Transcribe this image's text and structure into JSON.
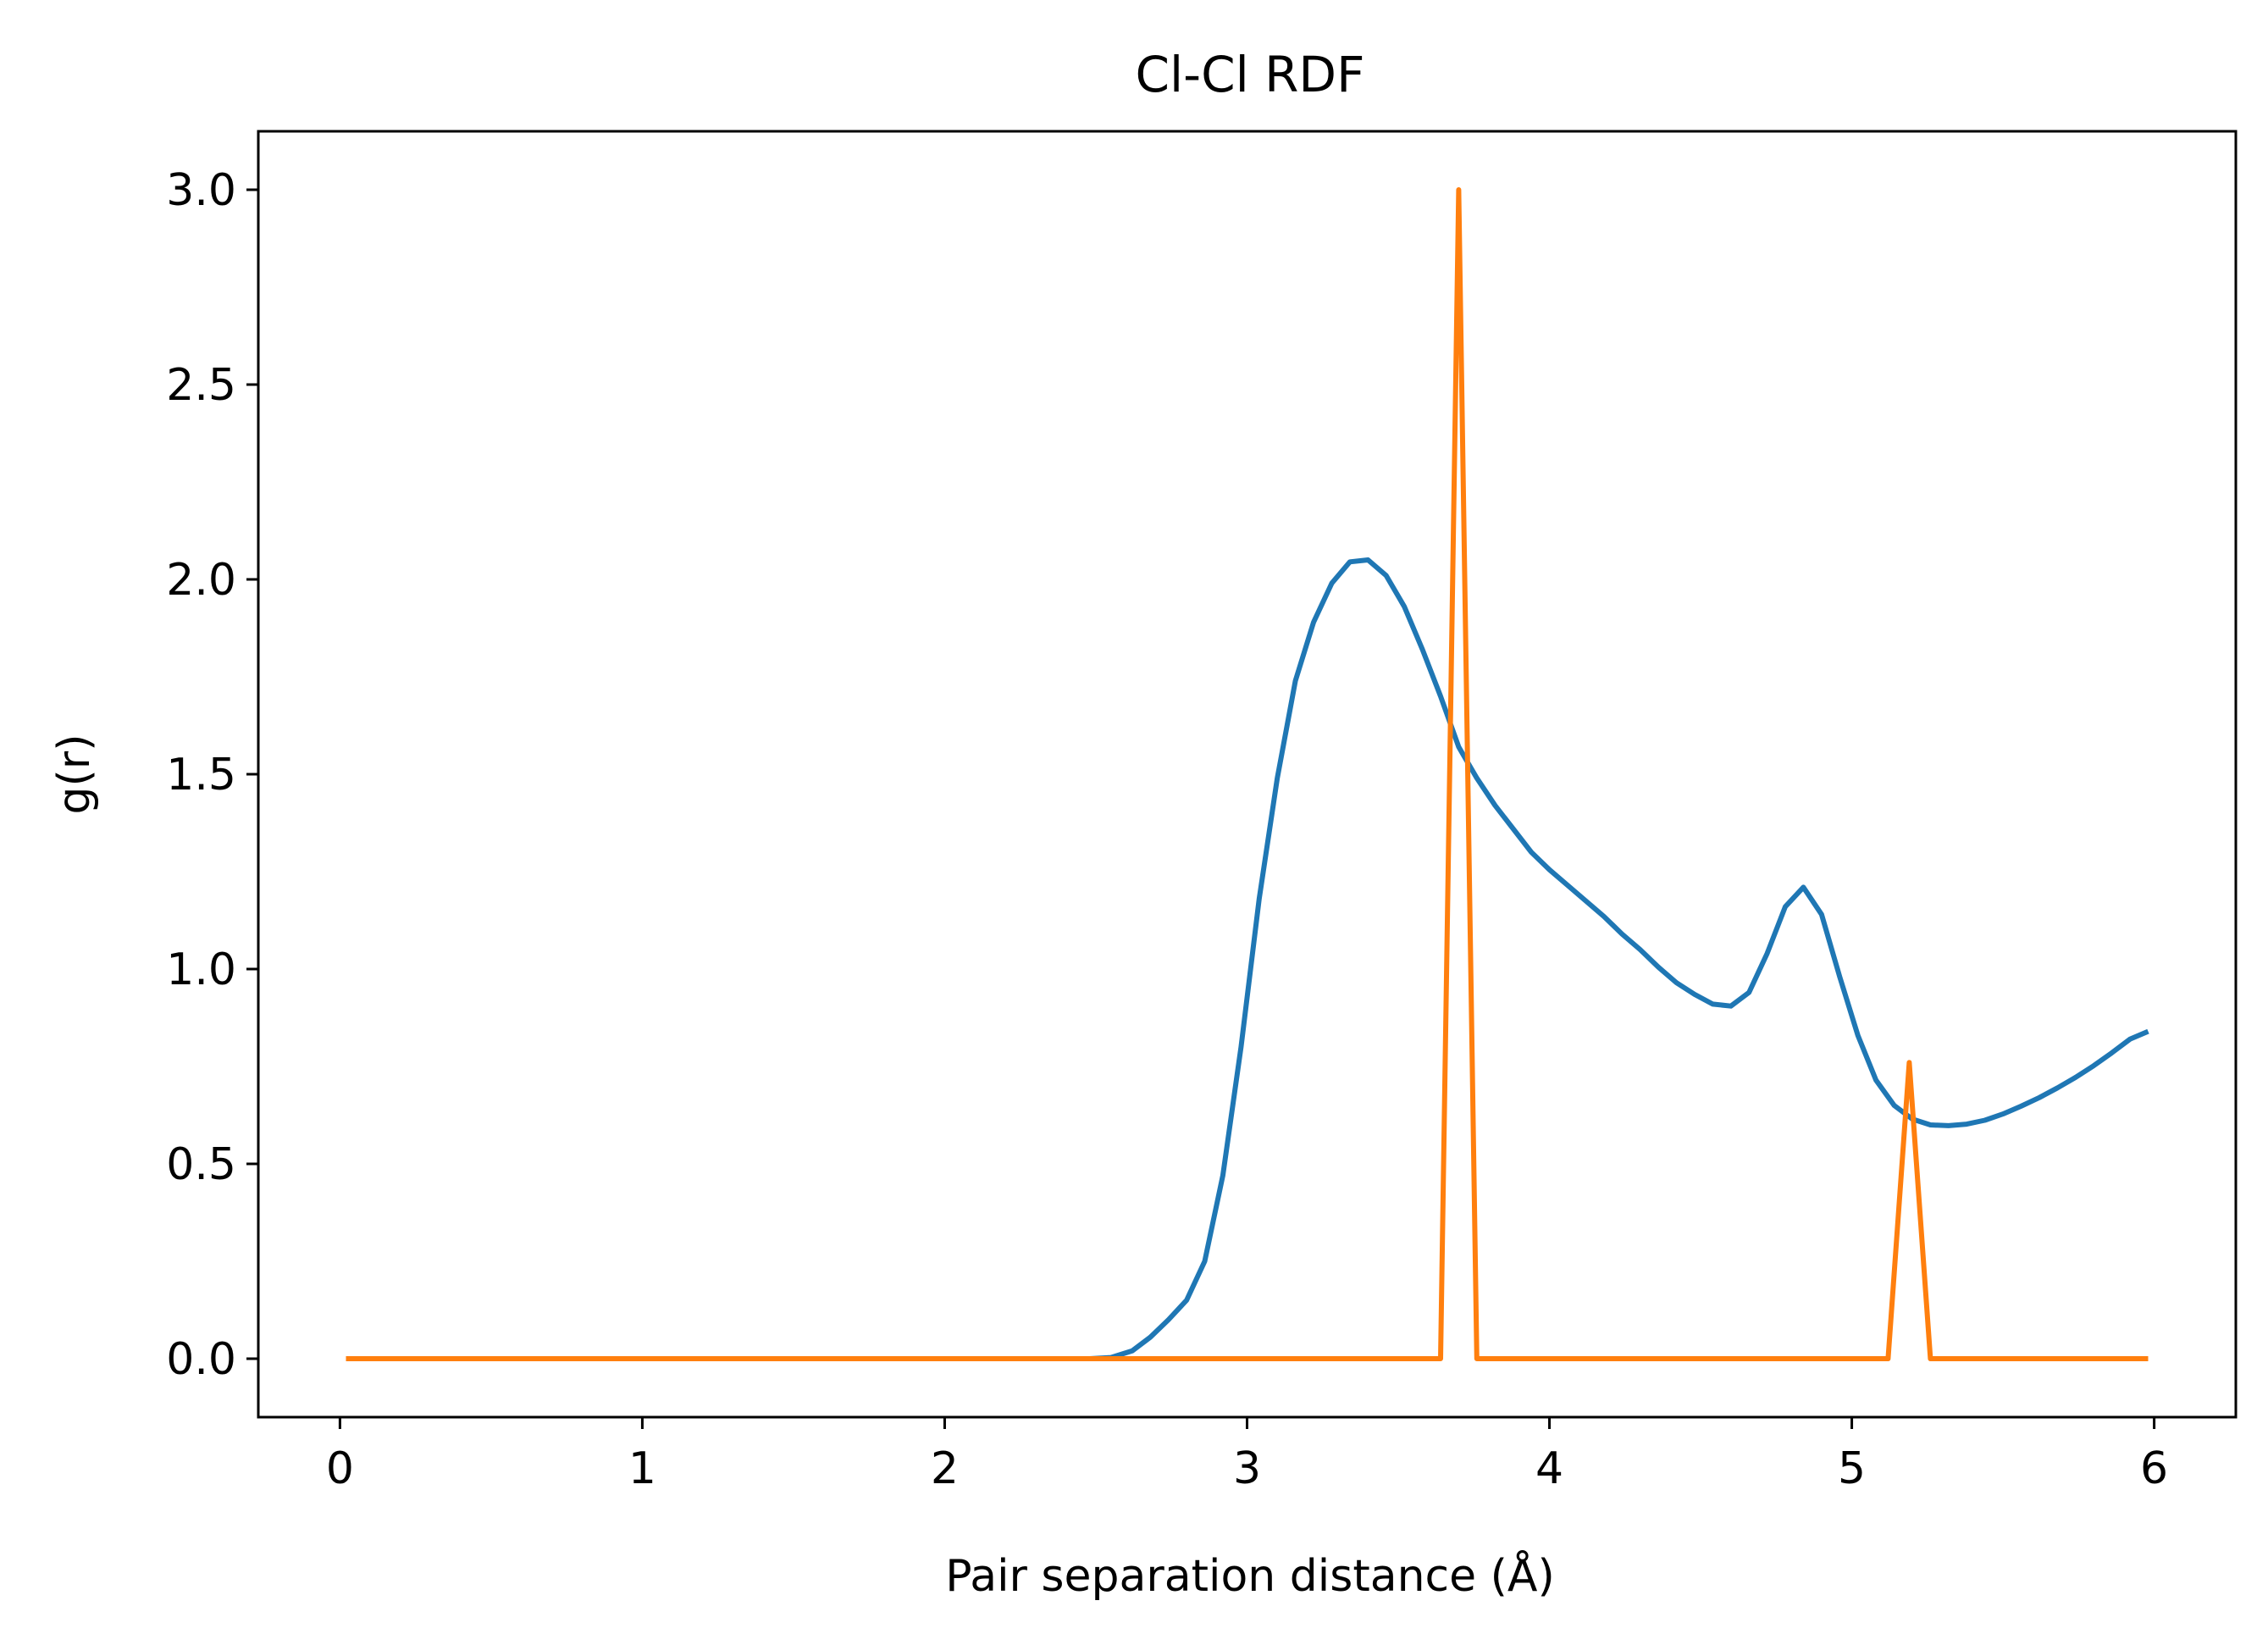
{
  "chart_data": {
    "type": "line",
    "title": "Cl-Cl RDF",
    "xlabel": "Pair separation distance (Å)",
    "ylabel": "g(r)",
    "xlim": [
      -0.27,
      6.27
    ],
    "ylim": [
      -0.15,
      3.15
    ],
    "x_ticks": [
      0,
      1,
      2,
      3,
      4,
      5,
      6
    ],
    "x_tick_labels": [
      "0",
      "1",
      "2",
      "3",
      "4",
      "5",
      "6"
    ],
    "y_ticks": [
      0,
      0.5,
      1,
      1.5,
      2,
      2.5,
      3
    ],
    "y_tick_labels": [
      "0.0",
      "0.5",
      "1.0",
      "1.5",
      "2.0",
      "2.5",
      "3.0"
    ],
    "grid": false,
    "series": [
      {
        "color": "#1f77b4",
        "points": [
          [
            0.02,
            0.0
          ],
          [
            2.48,
            0.0
          ],
          [
            2.55,
            0.003
          ],
          [
            2.62,
            0.02
          ],
          [
            2.68,
            0.055
          ],
          [
            2.74,
            0.1
          ],
          [
            2.8,
            0.15
          ],
          [
            2.86,
            0.25
          ],
          [
            2.92,
            0.47
          ],
          [
            2.98,
            0.8
          ],
          [
            3.04,
            1.18
          ],
          [
            3.1,
            1.49
          ],
          [
            3.16,
            1.74
          ],
          [
            3.22,
            1.89
          ],
          [
            3.28,
            1.99
          ],
          [
            3.34,
            2.045
          ],
          [
            3.4,
            2.05
          ],
          [
            3.46,
            2.01
          ],
          [
            3.52,
            1.93
          ],
          [
            3.58,
            1.82
          ],
          [
            3.64,
            1.7
          ],
          [
            3.7,
            1.57
          ],
          [
            3.76,
            1.49
          ],
          [
            3.82,
            1.42
          ],
          [
            3.88,
            1.36
          ],
          [
            3.94,
            1.3
          ],
          [
            4.0,
            1.255
          ],
          [
            4.06,
            1.215
          ],
          [
            4.12,
            1.175
          ],
          [
            4.18,
            1.135
          ],
          [
            4.24,
            1.09
          ],
          [
            4.3,
            1.05
          ],
          [
            4.36,
            1.005
          ],
          [
            4.42,
            0.965
          ],
          [
            4.48,
            0.935
          ],
          [
            4.54,
            0.91
          ],
          [
            4.6,
            0.905
          ],
          [
            4.66,
            0.94
          ],
          [
            4.72,
            1.04
          ],
          [
            4.78,
            1.16
          ],
          [
            4.84,
            1.21
          ],
          [
            4.9,
            1.14
          ],
          [
            4.96,
            0.98
          ],
          [
            5.02,
            0.83
          ],
          [
            5.08,
            0.715
          ],
          [
            5.14,
            0.65
          ],
          [
            5.2,
            0.615
          ],
          [
            5.26,
            0.6
          ],
          [
            5.32,
            0.598
          ],
          [
            5.38,
            0.602
          ],
          [
            5.44,
            0.612
          ],
          [
            5.5,
            0.628
          ],
          [
            5.56,
            0.648
          ],
          [
            5.62,
            0.67
          ],
          [
            5.68,
            0.695
          ],
          [
            5.74,
            0.722
          ],
          [
            5.8,
            0.752
          ],
          [
            5.86,
            0.785
          ],
          [
            5.92,
            0.82
          ],
          [
            5.98,
            0.84
          ]
        ]
      },
      {
        "color": "#ff7f0e",
        "points": [
          [
            0.02,
            0.0
          ],
          [
            3.64,
            0.0
          ],
          [
            3.7,
            3.0
          ],
          [
            3.76,
            0.0
          ],
          [
            5.12,
            0.0
          ],
          [
            5.19,
            0.76
          ],
          [
            5.26,
            0.0
          ],
          [
            5.98,
            0.0
          ]
        ]
      }
    ]
  }
}
